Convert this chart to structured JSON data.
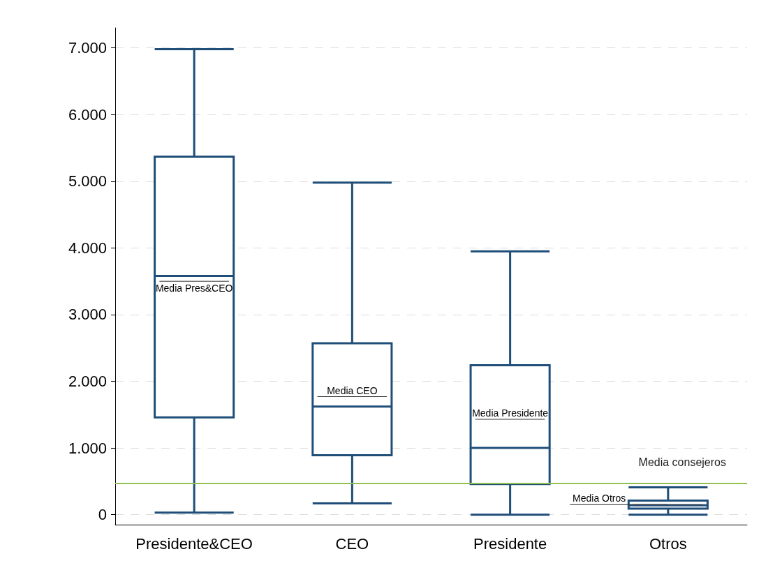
{
  "chart_data": {
    "type": "box",
    "categories": [
      "Presidente&CEO",
      "CEO",
      "Presidente",
      "Otros"
    ],
    "boxes": [
      {
        "low": 30,
        "q1": 1460,
        "median": 3580,
        "q3": 5370,
        "high": 6980,
        "mean": 3500
      },
      {
        "low": 170,
        "q1": 890,
        "median": 1620,
        "q3": 2570,
        "high": 4980,
        "mean": 1770
      },
      {
        "low": 0,
        "q1": 460,
        "median": 1000,
        "q3": 2240,
        "high": 3950,
        "mean": 1430
      },
      {
        "low": 0,
        "q1": 90,
        "median": 140,
        "q3": 210,
        "high": 410,
        "mean": 150
      }
    ],
    "color": "#1f4e79",
    "ylim": [
      -150,
      7300
    ],
    "yticks": [
      {
        "value": 0,
        "label": "0"
      },
      {
        "value": 1000,
        "label": "1.000"
      },
      {
        "value": 2000,
        "label": "2.000"
      },
      {
        "value": 3000,
        "label": "3.000"
      },
      {
        "value": 4000,
        "label": "4.000"
      },
      {
        "value": 5000,
        "label": "5.000"
      },
      {
        "value": 6000,
        "label": "6.000"
      },
      {
        "value": 7000,
        "label": "7.000"
      }
    ],
    "grid": "y",
    "ref_lines": [
      {
        "axis": "y",
        "value": 470,
        "label": "Media consejeros",
        "color": "#92c050",
        "line_style": "solid"
      }
    ],
    "annotations": [
      {
        "text": "Media Pres&CEO",
        "x": "Presidente&CEO",
        "y": 3500
      },
      {
        "text": "Media CEO",
        "x": "CEO",
        "y": 1770
      },
      {
        "text": "Media Presidente",
        "x": "Presidente",
        "y": 1430
      },
      {
        "text": "Media Otros",
        "x": "Otros",
        "y": 150
      }
    ]
  }
}
